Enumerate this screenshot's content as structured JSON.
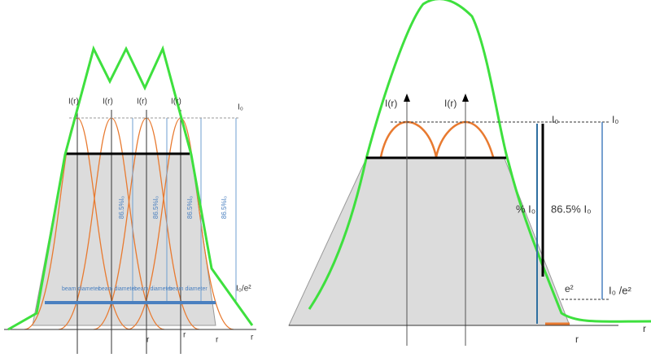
{
  "left_panel": {
    "peak_labels": [
      "I(r)",
      "I(r)",
      "I(r)",
      "I(r)"
    ],
    "level_labels": [
      "86.5%I₀",
      "86.5%I₀",
      "86.5%I₀",
      "86.5%I₀"
    ],
    "top_label": "I₀",
    "bottom_label": "I₀/e²",
    "diameter_labels": [
      "beam diameter",
      "beam diameter",
      "beam diameter",
      "beam diameter"
    ],
    "axis_labels": [
      "r",
      "r",
      "r",
      "r"
    ]
  },
  "right_panel": {
    "peak_labels": [
      "I(r)",
      "I(r)"
    ],
    "top_labels": [
      "I₀",
      "I₀"
    ],
    "level_labels": [
      "% I₀",
      "86.5% I₀"
    ],
    "bottom_labels": [
      "e²",
      "I₀ /e²"
    ],
    "axis_labels": [
      "r",
      "r"
    ]
  }
}
